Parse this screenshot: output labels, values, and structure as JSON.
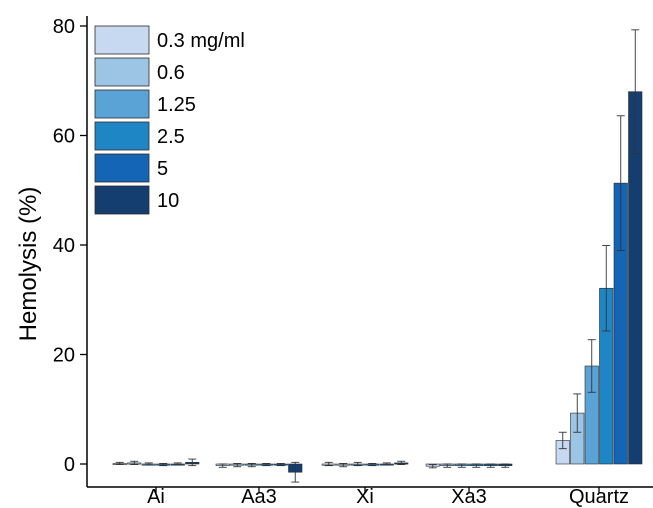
{
  "chart_data": {
    "type": "bar",
    "title": "",
    "xlabel": "",
    "ylabel": "Hemolysis (%)",
    "ylim": [
      -3,
      80
    ],
    "yticks": [
      0,
      20,
      40,
      60,
      80
    ],
    "grid": false,
    "legend_position": "top-left",
    "categories": [
      "Ai",
      "Aa3",
      "Xi",
      "Xa3",
      "Quartz"
    ],
    "series": [
      {
        "name": "0.3 mg/ml",
        "color": "#c6d9f1",
        "values": [
          0.1,
          -0.3,
          0.0,
          -0.4,
          4.3
        ],
        "errors": [
          0.2,
          0.3,
          0.3,
          0.3,
          1.5
        ]
      },
      {
        "name": "0.6",
        "color": "#9cc5e5",
        "values": [
          0.2,
          -0.2,
          -0.2,
          -0.3,
          9.3
        ],
        "errors": [
          0.3,
          0.3,
          0.3,
          0.3,
          3.5
        ]
      },
      {
        "name": "1.25",
        "color": "#5aa3d6",
        "values": [
          0.0,
          -0.2,
          0.0,
          -0.3,
          17.9
        ],
        "errors": [
          0.2,
          0.3,
          0.3,
          0.3,
          4.8
        ]
      },
      {
        "name": "2.5",
        "color": "#1f86c6",
        "values": [
          -0.1,
          -0.1,
          -0.1,
          -0.3,
          32.1
        ],
        "errors": [
          0.2,
          0.2,
          0.2,
          0.3,
          7.8
        ]
      },
      {
        "name": "5",
        "color": "#1465b5",
        "values": [
          0.0,
          -0.1,
          0.0,
          -0.3,
          51.3
        ],
        "errors": [
          0.2,
          0.2,
          0.2,
          0.3,
          12.3
        ]
      },
      {
        "name": "10",
        "color": "#143d70",
        "values": [
          0.3,
          -1.5,
          0.2,
          -0.3,
          68.0
        ],
        "errors": [
          0.6,
          1.8,
          0.3,
          0.3,
          11.3
        ]
      }
    ]
  }
}
